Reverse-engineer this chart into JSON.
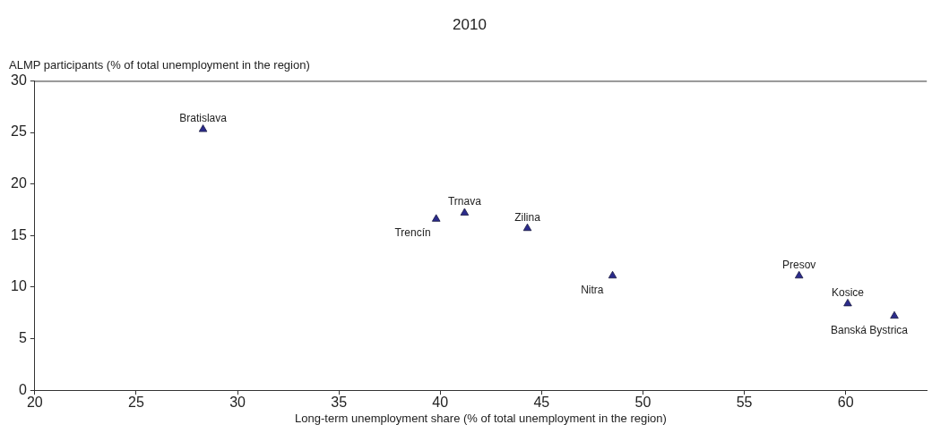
{
  "chart_data": {
    "type": "scatter",
    "title": "2010",
    "xlabel": "Long-term unemployment share (% of total unemployment in the region)",
    "ylabel": "ALMP participants (% of total unemployment in the region)",
    "x": [
      28.3,
      39.8,
      41.2,
      44.3,
      48.5,
      57.7,
      60.1,
      62.4
    ],
    "series": [
      {
        "color": "#2b2b8c",
        "values": [
          25.3,
          16.6,
          17.2,
          15.7,
          11.1,
          11.1,
          8.4,
          7.2
        ]
      }
    ],
    "xlim": [
      20,
      64
    ],
    "xticks": [
      20,
      25,
      30,
      35,
      40,
      45,
      50,
      55,
      60
    ],
    "ylim": [
      0,
      30
    ],
    "yticks": [
      0,
      5,
      10,
      15,
      20,
      25,
      30
    ],
    "grid": false,
    "legend": false,
    "marker": "triangle",
    "annotations": [
      {
        "text": "Bratislava",
        "x": 28.3,
        "y": 25.3
      },
      {
        "text": "Trencín",
        "x": 39.8,
        "y": 16.6
      },
      {
        "text": "Trnava",
        "x": 41.2,
        "y": 17.2
      },
      {
        "text": "Zilina",
        "x": 44.3,
        "y": 15.7
      },
      {
        "text": "Nitra",
        "x": 48.5,
        "y": 11.1
      },
      {
        "text": "Presov",
        "x": 57.7,
        "y": 11.1
      },
      {
        "text": "Kosice",
        "x": 60.1,
        "y": 8.4
      },
      {
        "text": "Banská Bystrica",
        "x": 62.4,
        "y": 7.2
      }
    ]
  }
}
